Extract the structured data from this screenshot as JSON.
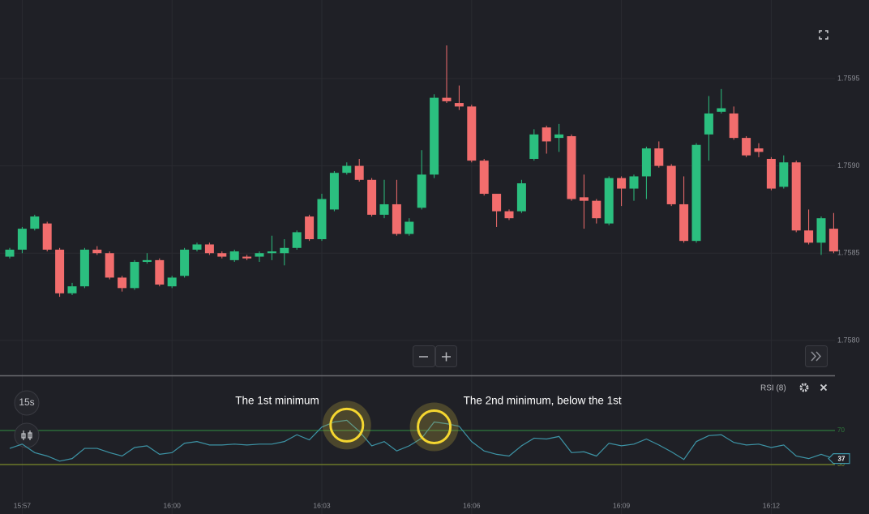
{
  "ui": {
    "timeframe": "15s"
  },
  "chart_data": [
    {
      "type": "candlestick",
      "categories": [
        null,
        "15:57",
        null,
        null,
        null,
        null,
        null,
        null,
        null,
        null,
        null,
        null,
        null,
        "16:00",
        null,
        null,
        null,
        null,
        null,
        null,
        null,
        null,
        null,
        null,
        null,
        "16:03",
        null,
        null,
        null,
        null,
        null,
        null,
        null,
        null,
        null,
        null,
        null,
        "16:06",
        null,
        null,
        null,
        null,
        null,
        null,
        null,
        null,
        null,
        null,
        null,
        "16:09",
        null,
        null,
        null,
        null,
        null,
        null,
        null,
        null,
        null,
        null,
        null,
        "16:12",
        null,
        null,
        null,
        null,
        null
      ],
      "open": [
        1.75848,
        1.75852,
        1.75864,
        1.75867,
        1.75852,
        1.75827,
        1.75831,
        1.75852,
        1.7585,
        1.75836,
        1.7583,
        1.75845,
        1.75846,
        1.75831,
        1.75837,
        1.75852,
        1.75855,
        1.7585,
        1.75846,
        1.75848,
        1.75848,
        1.7585,
        1.7585,
        1.75853,
        1.75871,
        1.75858,
        1.75875,
        1.75896,
        1.759,
        1.75892,
        1.75872,
        1.75878,
        1.75861,
        1.75876,
        1.75895,
        1.75939,
        1.75936,
        1.75934,
        1.75903,
        1.75884,
        1.75874,
        1.75874,
        1.75904,
        1.75922,
        1.75916,
        1.75917,
        1.75882,
        1.7588,
        1.75867,
        1.75893,
        1.75887,
        1.75894,
        1.7591,
        1.759,
        1.75878,
        1.75857,
        1.75918,
        1.75931,
        1.7593,
        1.75916,
        1.7591,
        1.75904,
        1.75888,
        1.75902,
        1.75863,
        1.75856,
        1.75864
      ],
      "high": [
        1.75853,
        1.75865,
        1.75872,
        1.75868,
        1.75853,
        1.75833,
        1.75853,
        1.75854,
        1.75851,
        1.75837,
        1.75846,
        1.7585,
        1.75847,
        1.75837,
        1.75853,
        1.75856,
        1.75856,
        1.75851,
        1.75852,
        1.75849,
        1.75851,
        1.7586,
        1.75858,
        1.75863,
        1.75872,
        1.75884,
        1.75897,
        1.75902,
        1.75904,
        1.75893,
        1.75892,
        1.75892,
        1.7587,
        1.75909,
        1.75941,
        1.75969,
        1.75946,
        1.75935,
        1.75904,
        1.75884,
        1.75875,
        1.75892,
        1.75921,
        1.75923,
        1.75924,
        1.75918,
        1.75895,
        1.75881,
        1.75894,
        1.75894,
        1.75895,
        1.75911,
        1.75914,
        1.75901,
        1.75894,
        1.75913,
        1.7594,
        1.75944,
        1.75934,
        1.75917,
        1.75913,
        1.75905,
        1.75906,
        1.75903,
        1.75875,
        1.75871,
        1.75873
      ],
      "low": [
        1.75847,
        1.7585,
        1.75863,
        1.75851,
        1.75825,
        1.75826,
        1.7583,
        1.75849,
        1.75835,
        1.75828,
        1.75829,
        1.75844,
        1.75831,
        1.7583,
        1.75836,
        1.75851,
        1.75849,
        1.75847,
        1.75845,
        1.75846,
        1.75845,
        1.75846,
        1.75843,
        1.75852,
        1.75857,
        1.75857,
        1.75874,
        1.75895,
        1.75891,
        1.75871,
        1.7587,
        1.7586,
        1.7586,
        1.75875,
        1.75893,
        1.75936,
        1.75932,
        1.75902,
        1.75883,
        1.75865,
        1.75869,
        1.75873,
        1.75903,
        1.75907,
        1.75908,
        1.7588,
        1.75864,
        1.75867,
        1.75866,
        1.75877,
        1.7588,
        1.75881,
        1.75899,
        1.75877,
        1.75856,
        1.75856,
        1.75903,
        1.7593,
        1.75915,
        1.75905,
        1.75905,
        1.75886,
        1.75887,
        1.75862,
        1.75855,
        1.75849,
        1.7585
      ],
      "close": [
        1.75852,
        1.75864,
        1.75871,
        1.75852,
        1.75827,
        1.75831,
        1.75852,
        1.7585,
        1.75836,
        1.7583,
        1.75845,
        1.75846,
        1.75832,
        1.75836,
        1.75852,
        1.75855,
        1.7585,
        1.75848,
        1.75851,
        1.75847,
        1.7585,
        1.75851,
        1.75853,
        1.75862,
        1.75858,
        1.75881,
        1.75896,
        1.759,
        1.75892,
        1.75872,
        1.75878,
        1.75861,
        1.75868,
        1.75895,
        1.75939,
        1.75937,
        1.75934,
        1.75903,
        1.75884,
        1.75874,
        1.7587,
        1.7589,
        1.75918,
        1.75914,
        1.75918,
        1.75881,
        1.7588,
        1.7587,
        1.75893,
        1.75887,
        1.75894,
        1.7591,
        1.759,
        1.75878,
        1.75857,
        1.75912,
        1.7593,
        1.75933,
        1.75916,
        1.75906,
        1.75908,
        1.75887,
        1.75902,
        1.75863,
        1.75856,
        1.7587,
        1.75851
      ],
      "up_color": "#2bbf7f",
      "down_color": "#f26d6d",
      "ylim": [
        1.7578,
        1.75995
      ],
      "yticks": [
        {
          "value": 1.758,
          "label": "1.7580"
        },
        1.7585,
        {
          "value": 1.759,
          "label": "1.7590"
        },
        1.7595
      ],
      "grid": true
    },
    {
      "type": "line",
      "title": "RSI (8)",
      "color": "#3d94a6",
      "values": [
        49,
        54,
        44,
        40,
        34,
        37,
        49,
        49,
        44,
        40,
        50,
        52,
        42,
        44,
        55,
        57,
        53,
        53,
        54,
        53,
        54,
        54,
        57,
        65,
        59,
        74,
        80,
        82,
        69,
        52,
        57,
        46,
        52,
        61,
        80,
        78,
        75,
        57,
        46,
        42,
        40,
        52,
        61,
        60,
        63,
        44,
        45,
        40,
        55,
        52,
        54,
        60,
        53,
        45,
        36,
        57,
        64,
        65,
        56,
        53,
        54,
        50,
        53,
        40,
        37,
        42,
        37
      ],
      "ylim": [
        10,
        130
      ],
      "yticks": [
        30,
        70
      ],
      "level_colors": [
        "#7a8a2a",
        "#2f7a3c"
      ],
      "annotations": [
        {
          "text": "The 1st minimum",
          "index": 27
        },
        {
          "text": "The 2nd minimum, below the 1st",
          "index": 34
        }
      ]
    }
  ]
}
